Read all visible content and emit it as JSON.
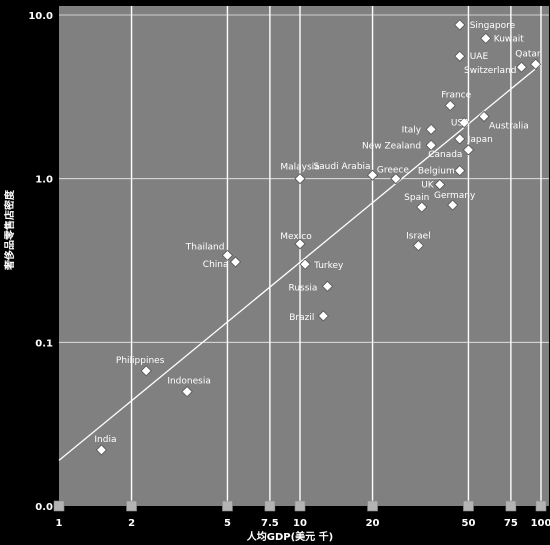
{
  "chart_data": {
    "type": "scatter",
    "title": "",
    "xlabel": "人均GDP(美元 千)",
    "ylabel": "奢侈品零售店密度",
    "x_scale": "log",
    "y_scale": "log",
    "xlim": [
      1,
      100
    ],
    "ylim": [
      0.01,
      10
    ],
    "x_ticks": [
      1,
      2,
      5,
      7.5,
      10,
      20,
      50,
      75,
      100
    ],
    "x_tick_labels": [
      "1",
      "2",
      "5",
      "7.5",
      "10",
      "20",
      "50",
      "75",
      "100"
    ],
    "y_ticks": [
      0.01,
      0.1,
      1,
      10
    ],
    "y_tick_labels": [
      "0.0",
      "0.1",
      "1.0",
      "10.0"
    ],
    "grid": true,
    "colors": {
      "background": "#000000",
      "plot_area": "#808080",
      "grid": "#ffffff",
      "marker_fill": "#ffffff",
      "marker_stroke": "#555555",
      "trend_line": "#ffffff",
      "axis_marker": "#b3b3b3"
    },
    "points": [
      {
        "label": "Singapore",
        "x": 46,
        "y": 8.7
      },
      {
        "label": "Kuwait",
        "x": 59,
        "y": 7.2
      },
      {
        "label": "UAE",
        "x": 46,
        "y": 5.6
      },
      {
        "label": "Qatar",
        "x": 95,
        "y": 5.0
      },
      {
        "label": "Switzerland",
        "x": 83,
        "y": 4.8
      },
      {
        "label": "France",
        "x": 42,
        "y": 2.8
      },
      {
        "label": "USA",
        "x": 48,
        "y": 2.2
      },
      {
        "label": "Australia",
        "x": 58,
        "y": 2.4
      },
      {
        "label": "Italy",
        "x": 35,
        "y": 2.0
      },
      {
        "label": "Japan",
        "x": 46,
        "y": 1.75
      },
      {
        "label": "New Zealand",
        "x": 35,
        "y": 1.6
      },
      {
        "label": "Canada",
        "x": 50,
        "y": 1.5
      },
      {
        "label": "Malaysia",
        "x": 10,
        "y": 1.0
      },
      {
        "label": "Saudi Arabia",
        "x": 20,
        "y": 1.05
      },
      {
        "label": "Greece",
        "x": 25,
        "y": 1.0
      },
      {
        "label": "Belgium",
        "x": 46,
        "y": 1.12
      },
      {
        "label": "UK",
        "x": 38,
        "y": 0.92
      },
      {
        "label": "Spain",
        "x": 32,
        "y": 0.67
      },
      {
        "label": "Germany",
        "x": 43,
        "y": 0.69
      },
      {
        "label": "Israel",
        "x": 31,
        "y": 0.39
      },
      {
        "label": "Mexico",
        "x": 10,
        "y": 0.4
      },
      {
        "label": "Thailand",
        "x": 5,
        "y": 0.34
      },
      {
        "label": "China",
        "x": 5.4,
        "y": 0.31
      },
      {
        "label": "Turkey",
        "x": 10.5,
        "y": 0.3
      },
      {
        "label": "Russia",
        "x": 13,
        "y": 0.22
      },
      {
        "label": "Brazil",
        "x": 12.5,
        "y": 0.145
      },
      {
        "label": "Philippines",
        "x": 2.3,
        "y": 0.067
      },
      {
        "label": "Indonesia",
        "x": 3.4,
        "y": 0.05
      },
      {
        "label": "India",
        "x": 1.5,
        "y": 0.022
      }
    ],
    "trend_line": {
      "type": "power",
      "x": [
        1,
        100
      ],
      "y": [
        0.019,
        5.0
      ]
    }
  }
}
